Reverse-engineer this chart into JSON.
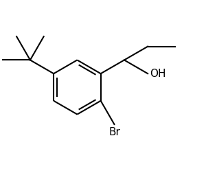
{
  "background_color": "#ffffff",
  "line_color": "#000000",
  "line_width": 1.5,
  "figsize": [
    3.0,
    2.49
  ],
  "dpi": 100,
  "font_size_labels": 11
}
